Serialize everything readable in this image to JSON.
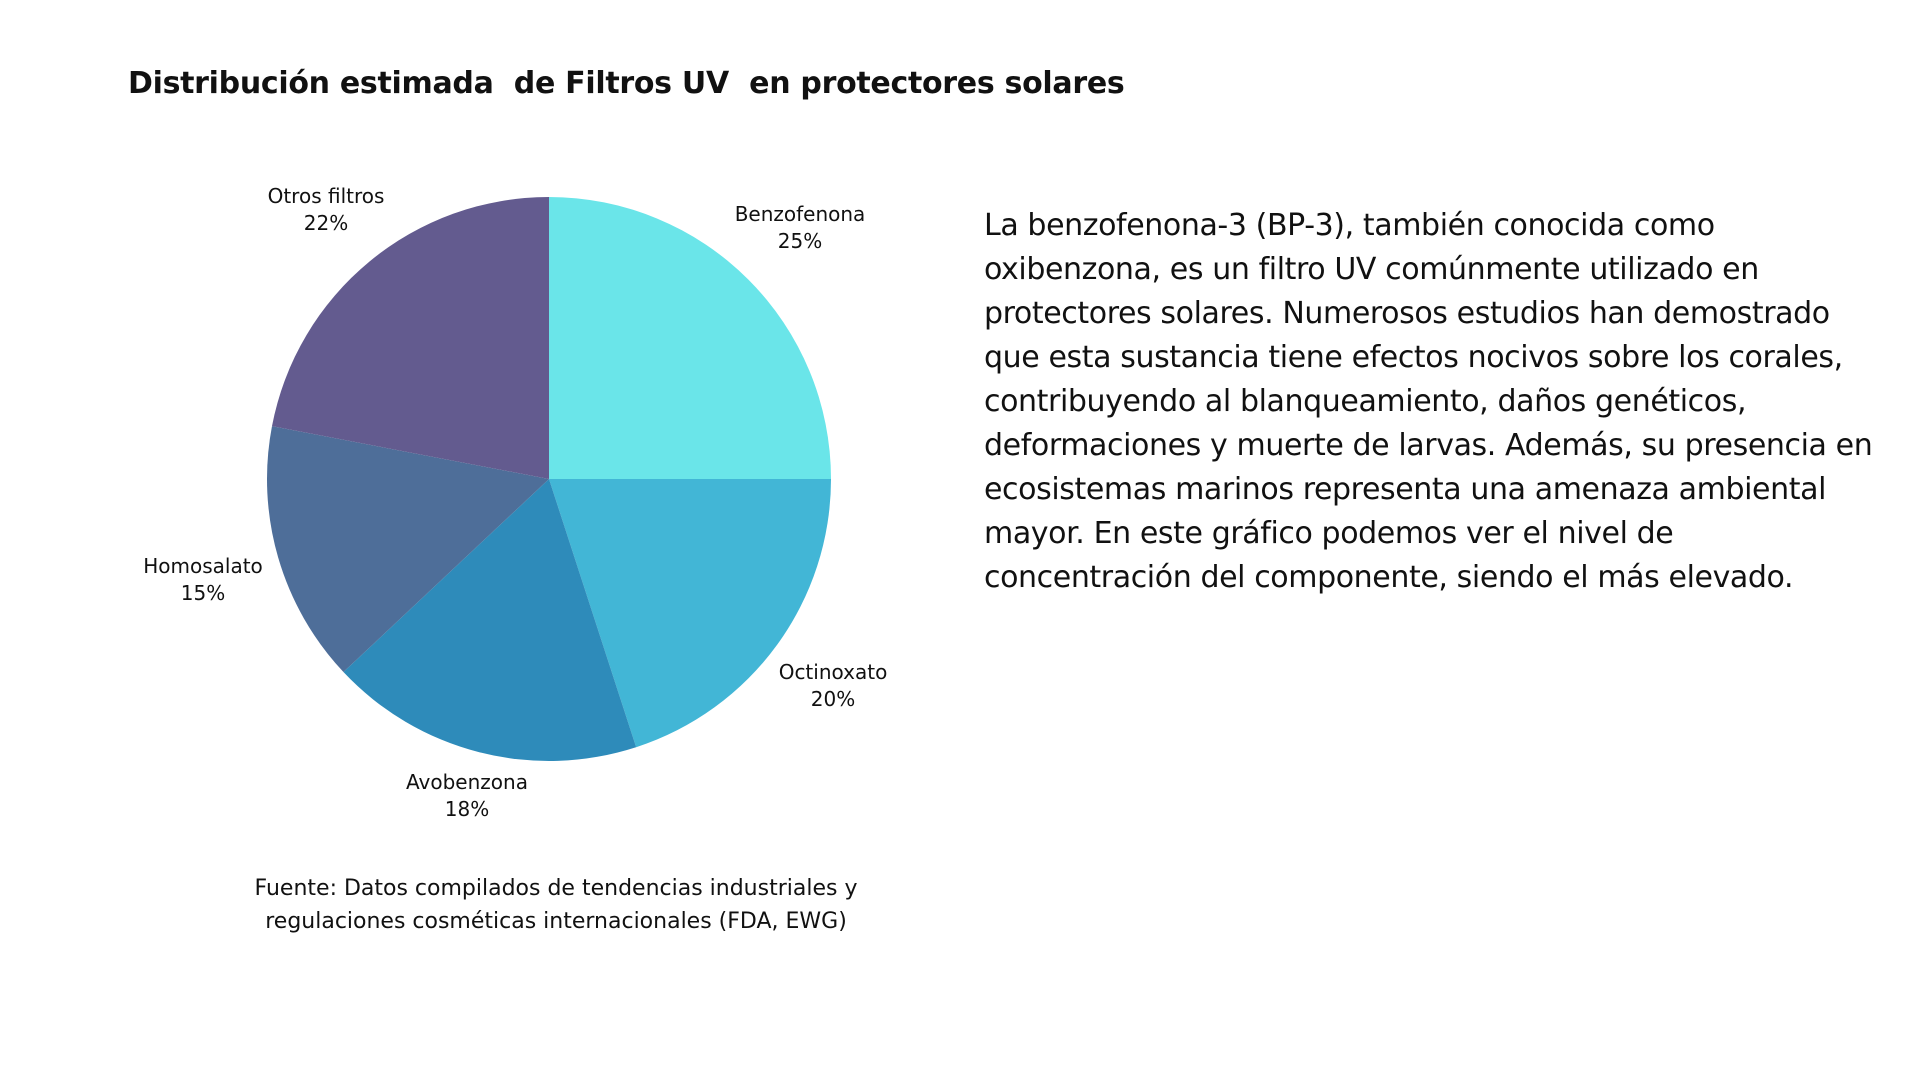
{
  "chart_data": {
    "type": "pie",
    "title": "Distribución estimada  de Filtros UV  en protectores solares",
    "slices": [
      {
        "label": "Benzofenona",
        "value": 25,
        "display": "25%",
        "color": "#6ae5e9"
      },
      {
        "label": "Octinoxato",
        "value": 20,
        "display": "20%",
        "color": "#42b6d6"
      },
      {
        "label": "Avobenzona",
        "value": 18,
        "display": "18%",
        "color": "#2e8bba"
      },
      {
        "label": "Homosalato",
        "value": 15,
        "display": "15%",
        "color": "#4e6e99"
      },
      {
        "label": "Otros filtros",
        "value": 22,
        "display": "22%",
        "color": "#635b8f"
      }
    ],
    "start_angle": "top, clockwise"
  },
  "description": "La benzofenona-3 (BP-3), también conocida como oxibenzona, es un filtro UV comúnmente utilizado en protectores solares. Numerosos estudios han demostrado que esta sustancia tiene efectos nocivos sobre los corales, contribuyendo al blanqueamiento, daños genéticos, deformaciones y muerte de larvas. Además, su presencia en ecosistemas marinos representa una amenaza ambiental mayor. En este gráfico podemos ver el nivel de concentración del componente, siendo el más elevado.",
  "source_line1": "Fuente: Datos compilados de tendencias industriales y",
  "source_line2": "regulaciones cosméticas internacionales (FDA, EWG)"
}
